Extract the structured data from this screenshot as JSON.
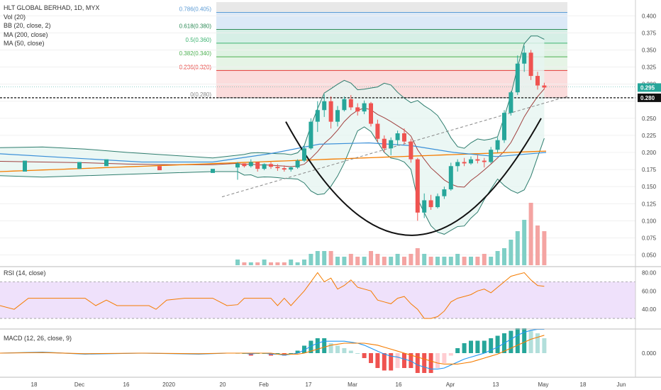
{
  "legend": {
    "symbol": "HLT GLOBAL BERHAD, 1D, MYX",
    "vol": "Vol (20)",
    "bb": "BB (20, close, 2)",
    "ma200": "MA (200, close)",
    "ma50": "MA (50, close)"
  },
  "rsi_label": "RSI (14, close)",
  "macd_label": "MACD (12, 26, close, 9)",
  "price_axis": [
    "0.400",
    "0.375",
    "0.350",
    "0.325",
    "0.300",
    "0.250",
    "0.225",
    "0.200",
    "0.175",
    "0.150",
    "0.125",
    "0.100",
    "0.075",
    "0.050"
  ],
  "rsi_axis": [
    "80.00",
    "60.00",
    "40.00"
  ],
  "macd_axis": [
    "0.000"
  ],
  "time_axis": [
    "18",
    "Dec",
    "16",
    "2020",
    "20",
    "Feb",
    "17",
    "Mar",
    "16",
    "Apr",
    "13",
    "May",
    "18",
    "Jun"
  ],
  "last_price": "0.295",
  "support_price": "0.280",
  "fib_levels": [
    {
      "label": "0.786(0.405)",
      "value": 0.405,
      "color": "#5b9bd5"
    },
    {
      "label": "0.618(0.380)",
      "value": 0.38,
      "color": "#2e8b57"
    },
    {
      "label": "0.5(0.360)",
      "value": 0.36,
      "color": "#3cb371"
    },
    {
      "label": "0.382(0.340)",
      "value": 0.34,
      "color": "#4caf50"
    },
    {
      "label": "0.236(0.320)",
      "value": 0.32,
      "color": "#e53935"
    },
    {
      "label": "0(0.280)",
      "value": 0.28,
      "color": "#888888"
    }
  ],
  "colors": {
    "up": "#26a69a",
    "down": "#ef5350",
    "ma200": "#f57c00",
    "ma50": "#3a8fd8",
    "bb": "#2e7d6e",
    "rsi": "#f57c00",
    "macd": "#2196f3",
    "signal": "#f57c00"
  },
  "chart_data": {
    "type": "candlestick",
    "y_range": [
      0.035,
      0.42
    ],
    "candles": [
      {
        "o": 0.178,
        "h": 0.186,
        "l": 0.16,
        "c": 0.184
      },
      {
        "o": 0.184,
        "h": 0.184,
        "l": 0.178,
        "c": 0.18
      },
      {
        "o": 0.18,
        "h": 0.19,
        "l": 0.178,
        "c": 0.186
      },
      {
        "o": 0.186,
        "h": 0.186,
        "l": 0.172,
        "c": 0.176
      },
      {
        "o": 0.176,
        "h": 0.184,
        "l": 0.174,
        "c": 0.183
      },
      {
        "o": 0.183,
        "h": 0.186,
        "l": 0.176,
        "c": 0.179
      },
      {
        "o": 0.179,
        "h": 0.183,
        "l": 0.173,
        "c": 0.177
      },
      {
        "o": 0.177,
        "h": 0.181,
        "l": 0.172,
        "c": 0.175
      },
      {
        "o": 0.175,
        "h": 0.18,
        "l": 0.172,
        "c": 0.178
      },
      {
        "o": 0.178,
        "h": 0.19,
        "l": 0.176,
        "c": 0.188
      },
      {
        "o": 0.188,
        "h": 0.21,
        "l": 0.186,
        "c": 0.206
      },
      {
        "o": 0.206,
        "h": 0.25,
        "l": 0.204,
        "c": 0.245
      },
      {
        "o": 0.245,
        "h": 0.275,
        "l": 0.23,
        "c": 0.262
      },
      {
        "o": 0.262,
        "h": 0.285,
        "l": 0.252,
        "c": 0.275
      },
      {
        "o": 0.275,
        "h": 0.282,
        "l": 0.235,
        "c": 0.245
      },
      {
        "o": 0.245,
        "h": 0.268,
        "l": 0.238,
        "c": 0.262
      },
      {
        "o": 0.262,
        "h": 0.282,
        "l": 0.26,
        "c": 0.278
      },
      {
        "o": 0.278,
        "h": 0.284,
        "l": 0.262,
        "c": 0.266
      },
      {
        "o": 0.266,
        "h": 0.272,
        "l": 0.254,
        "c": 0.26
      },
      {
        "o": 0.26,
        "h": 0.276,
        "l": 0.256,
        "c": 0.272
      },
      {
        "o": 0.272,
        "h": 0.274,
        "l": 0.238,
        "c": 0.242
      },
      {
        "o": 0.242,
        "h": 0.248,
        "l": 0.215,
        "c": 0.22
      },
      {
        "o": 0.22,
        "h": 0.225,
        "l": 0.2,
        "c": 0.206
      },
      {
        "o": 0.206,
        "h": 0.222,
        "l": 0.196,
        "c": 0.218
      },
      {
        "o": 0.218,
        "h": 0.232,
        "l": 0.21,
        "c": 0.228
      },
      {
        "o": 0.228,
        "h": 0.235,
        "l": 0.212,
        "c": 0.216
      },
      {
        "o": 0.216,
        "h": 0.22,
        "l": 0.185,
        "c": 0.19
      },
      {
        "o": 0.19,
        "h": 0.192,
        "l": 0.1,
        "c": 0.112
      },
      {
        "o": 0.112,
        "h": 0.14,
        "l": 0.104,
        "c": 0.13
      },
      {
        "o": 0.13,
        "h": 0.138,
        "l": 0.116,
        "c": 0.12
      },
      {
        "o": 0.12,
        "h": 0.14,
        "l": 0.118,
        "c": 0.136
      },
      {
        "o": 0.136,
        "h": 0.15,
        "l": 0.132,
        "c": 0.146
      },
      {
        "o": 0.146,
        "h": 0.185,
        "l": 0.144,
        "c": 0.18
      },
      {
        "o": 0.18,
        "h": 0.19,
        "l": 0.172,
        "c": 0.186
      },
      {
        "o": 0.186,
        "h": 0.192,
        "l": 0.18,
        "c": 0.184
      },
      {
        "o": 0.184,
        "h": 0.194,
        "l": 0.182,
        "c": 0.19
      },
      {
        "o": 0.19,
        "h": 0.196,
        "l": 0.184,
        "c": 0.188
      },
      {
        "o": 0.188,
        "h": 0.192,
        "l": 0.178,
        "c": 0.186
      },
      {
        "o": 0.186,
        "h": 0.208,
        "l": 0.184,
        "c": 0.204
      },
      {
        "o": 0.204,
        "h": 0.222,
        "l": 0.2,
        "c": 0.218
      },
      {
        "o": 0.218,
        "h": 0.262,
        "l": 0.214,
        "c": 0.258
      },
      {
        "o": 0.258,
        "h": 0.29,
        "l": 0.254,
        "c": 0.288
      },
      {
        "o": 0.288,
        "h": 0.342,
        "l": 0.284,
        "c": 0.33
      },
      {
        "o": 0.33,
        "h": 0.356,
        "l": 0.318,
        "c": 0.346
      },
      {
        "o": 0.346,
        "h": 0.35,
        "l": 0.306,
        "c": 0.312
      },
      {
        "o": 0.312,
        "h": 0.318,
        "l": 0.292,
        "c": 0.298
      },
      {
        "o": 0.298,
        "h": 0.302,
        "l": 0.292,
        "c": 0.295
      }
    ],
    "volume": [
      2,
      1,
      1,
      1,
      2,
      1,
      1,
      1,
      2,
      1,
      2,
      4,
      5,
      5,
      5,
      3,
      3,
      4,
      3,
      3,
      5,
      4,
      3,
      3,
      4,
      3,
      4,
      6,
      4,
      3,
      3,
      3,
      3,
      4,
      3,
      3,
      3,
      4,
      3,
      5,
      6,
      9,
      12,
      16,
      22,
      14,
      12
    ],
    "rsi": [
      45,
      52,
      52,
      52,
      52,
      52,
      44,
      52,
      44,
      52,
      60,
      70,
      80,
      70,
      74,
      62,
      66,
      72,
      64,
      62,
      60,
      50,
      48,
      46,
      52,
      54,
      46,
      40,
      30,
      30,
      32,
      38,
      48,
      52,
      54,
      56,
      60,
      62,
      58,
      64,
      70,
      76,
      78,
      80,
      72,
      66,
      65
    ],
    "macd": [
      0.0,
      0.0,
      -0.001,
      0.0,
      0.0,
      -0.001,
      -0.001,
      -0.002,
      -0.001,
      0.0,
      0.003,
      0.007,
      0.01,
      0.012,
      0.012,
      0.012,
      0.012,
      0.011,
      0.01,
      0.008,
      0.005,
      0.002,
      -0.001,
      -0.003,
      -0.004,
      -0.006,
      -0.008,
      -0.012,
      -0.014,
      -0.016,
      -0.016,
      -0.015,
      -0.012,
      -0.009,
      -0.006,
      -0.004,
      -0.002,
      0.0,
      0.003,
      0.006,
      0.01,
      0.014,
      0.018,
      0.021,
      0.023,
      0.024,
      0.024
    ],
    "signal": [
      0.0,
      0.0,
      0.0,
      0.0,
      0.0,
      0.0,
      -0.001,
      -0.001,
      -0.001,
      -0.001,
      0.0,
      0.002,
      0.004,
      0.006,
      0.008,
      0.009,
      0.01,
      0.01,
      0.01,
      0.01,
      0.009,
      0.008,
      0.006,
      0.004,
      0.002,
      0.0,
      -0.002,
      -0.004,
      -0.006,
      -0.008,
      -0.01,
      -0.011,
      -0.011,
      -0.011,
      -0.01,
      -0.009,
      -0.007,
      -0.005,
      -0.003,
      -0.001,
      0.002,
      0.005,
      0.008,
      0.011,
      0.014,
      0.016,
      0.018
    ]
  }
}
